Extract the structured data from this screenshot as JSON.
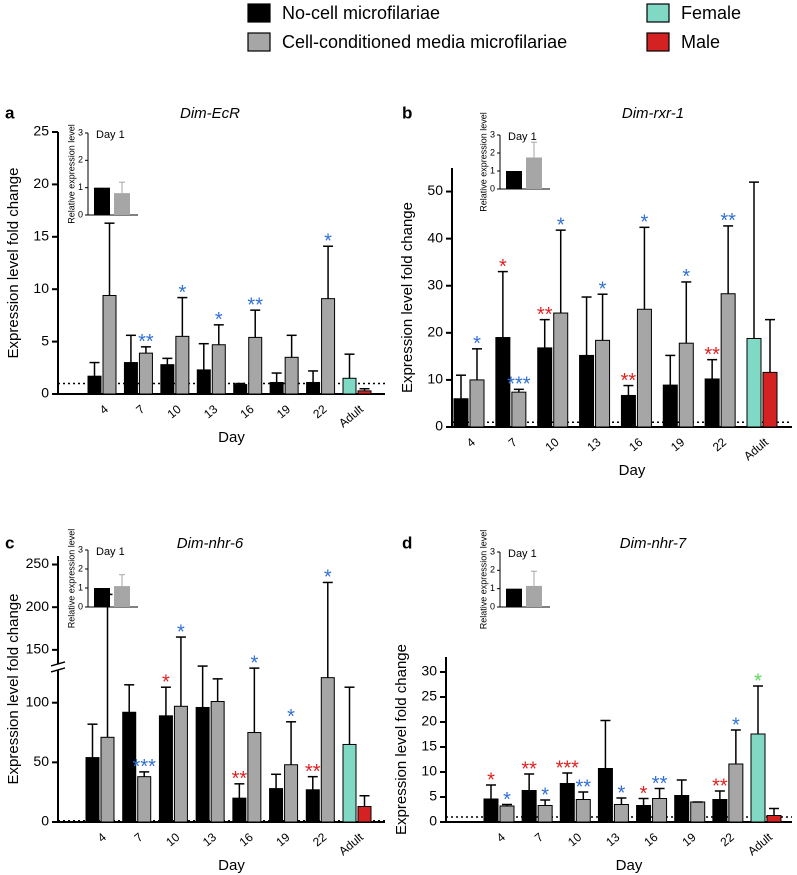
{
  "legend": [
    {
      "name": "No-cell microfilariae",
      "color": "#000000"
    },
    {
      "name": "Cell-conditioned media microfilariae",
      "color": "#a6a6a6"
    },
    {
      "name": "Female",
      "color": "#7fd9c4"
    },
    {
      "name": "Male",
      "color": "#d42222"
    }
  ],
  "chart_data": [
    {
      "type": "bar",
      "panel": "a",
      "title": "Dim-EcR",
      "ylabel": "Expression level fold change",
      "xlabel": "Day",
      "categories": [
        "4",
        "7",
        "10",
        "13",
        "16",
        "19",
        "22",
        "Adult"
      ],
      "ylim": [
        0,
        25
      ],
      "yticks": [
        0,
        5,
        10,
        15,
        20,
        25
      ],
      "reference_line": 1,
      "series": [
        {
          "color": "#000000",
          "values": [
            1.7,
            3.0,
            2.8,
            2.3,
            0.9,
            1.1,
            1.1,
            null
          ],
          "errors": [
            1.3,
            2.6,
            0.6,
            2.5,
            0.1,
            0.9,
            1.1,
            null
          ]
        },
        {
          "color": "#a6a6a6",
          "values": [
            9.4,
            3.9,
            5.5,
            4.7,
            5.4,
            3.5,
            9.1,
            null
          ],
          "errors": [
            6.9,
            0.6,
            3.7,
            1.9,
            2.6,
            2.1,
            5.0,
            null
          ],
          "stars": [
            null,
            "**",
            "*",
            "*",
            "**",
            null,
            "*",
            null
          ],
          "star_colors": [
            null,
            "#2f6fd6",
            "#2f6fd6",
            "#2f6fd6",
            "#2f6fd6",
            null,
            "#2f6fd6",
            null
          ]
        },
        {
          "color": "#7fd9c4",
          "values": [
            null,
            null,
            null,
            null,
            null,
            null,
            null,
            1.5
          ],
          "errors": [
            null,
            null,
            null,
            null,
            null,
            null,
            null,
            2.3
          ]
        },
        {
          "color": "#d42222",
          "values": [
            null,
            null,
            null,
            null,
            null,
            null,
            null,
            0.3
          ],
          "errors": [
            null,
            null,
            null,
            null,
            null,
            null,
            null,
            0.2
          ]
        }
      ],
      "inset": {
        "title": "Day 1",
        "ylabel": "Relative expression level",
        "ylim": [
          0,
          3
        ],
        "yticks": [
          0,
          1,
          2,
          3
        ],
        "values": [
          1,
          0.8
        ],
        "errors": [
          0,
          0.4
        ]
      }
    },
    {
      "type": "bar",
      "panel": "b",
      "title": "Dim-rxr-1",
      "ylabel": "Expression level fold change",
      "xlabel": "Day",
      "categories": [
        "4",
        "7",
        "10",
        "13",
        "16",
        "19",
        "22",
        "Adult"
      ],
      "ylim": [
        0,
        55
      ],
      "yticks": [
        0,
        10,
        20,
        30,
        40,
        50
      ],
      "reference_line": 1,
      "series": [
        {
          "color": "#000000",
          "values": [
            6,
            19,
            16.8,
            15.2,
            6.7,
            8.9,
            10.2,
            null
          ],
          "errors": [
            5,
            14,
            6,
            12.4,
            2.1,
            6.3,
            4.1,
            null
          ],
          "stars": [
            null,
            "*",
            "**",
            null,
            "**",
            null,
            "**",
            null
          ],
          "star_colors": [
            null,
            "#e02020",
            "#e02020",
            null,
            "#e02020",
            null,
            "#e02020",
            null
          ]
        },
        {
          "color": "#a6a6a6",
          "values": [
            10,
            7.4,
            24.2,
            18.4,
            25,
            17.8,
            28.3,
            null
          ],
          "errors": [
            6.6,
            0.6,
            17.6,
            9.8,
            17.4,
            13,
            14.4,
            null
          ],
          "stars": [
            "*",
            "***",
            "*",
            "*",
            "*",
            "*",
            "**",
            null
          ],
          "star_colors": [
            "#2f6fd6",
            "#2f6fd6",
            "#2f6fd6",
            "#2f6fd6",
            "#2f6fd6",
            "#2f6fd6",
            "#2f6fd6",
            null
          ]
        },
        {
          "color": "#7fd9c4",
          "values": [
            null,
            null,
            null,
            null,
            null,
            null,
            null,
            18.8
          ],
          "errors": [
            null,
            null,
            null,
            null,
            null,
            null,
            null,
            33.2
          ]
        },
        {
          "color": "#d42222",
          "values": [
            null,
            null,
            null,
            null,
            null,
            null,
            null,
            11.6
          ],
          "errors": [
            null,
            null,
            null,
            null,
            null,
            null,
            null,
            11.2
          ]
        }
      ],
      "inset": {
        "title": "Day 1",
        "ylabel": "Relative expression level",
        "ylim": [
          0,
          3
        ],
        "yticks": [
          0,
          1,
          2,
          3
        ],
        "values": [
          1,
          1.75
        ],
        "errors": [
          0,
          0.85
        ]
      }
    },
    {
      "type": "bar",
      "panel": "c",
      "title": "Dim-nhr-6",
      "ylabel": "Expression level fold change",
      "xlabel": "Day",
      "categories": [
        "4",
        "7",
        "10",
        "13",
        "16",
        "19",
        "22",
        "Adult"
      ],
      "ylim": [
        0,
        260
      ],
      "yticks": [
        0,
        50,
        100,
        150,
        200,
        250
      ],
      "axis_break": 130,
      "reference_line": 1,
      "series": [
        {
          "color": "#000000",
          "values": [
            54,
            92,
            89,
            96,
            20,
            28,
            27,
            null
          ],
          "errors": [
            28,
            23,
            24,
            35,
            12,
            12,
            11,
            null
          ],
          "stars": [
            null,
            null,
            "*",
            null,
            "**",
            null,
            "**",
            null
          ],
          "star_colors": [
            null,
            null,
            "#e02020",
            null,
            "#e02020",
            null,
            "#e02020",
            null
          ]
        },
        {
          "color": "#a6a6a6",
          "values": [
            71,
            38,
            97,
            101,
            75,
            48,
            121,
            null
          ],
          "errors": [
            144,
            4,
            68,
            19,
            54,
            36,
            108,
            null
          ],
          "stars": [
            null,
            "***",
            "*",
            null,
            "*",
            "*",
            "*",
            null
          ],
          "star_colors": [
            null,
            "#2f6fd6",
            "#2f6fd6",
            null,
            "#2f6fd6",
            "#2f6fd6",
            "#2f6fd6",
            null
          ]
        },
        {
          "color": "#7fd9c4",
          "values": [
            null,
            null,
            null,
            null,
            null,
            null,
            null,
            65
          ],
          "errors": [
            null,
            null,
            null,
            null,
            null,
            null,
            null,
            48
          ]
        },
        {
          "color": "#d42222",
          "values": [
            null,
            null,
            null,
            null,
            null,
            null,
            null,
            13
          ],
          "errors": [
            null,
            null,
            null,
            null,
            null,
            null,
            null,
            9
          ]
        }
      ],
      "inset": {
        "title": "Day 1",
        "ylabel": "Relative expression level",
        "ylim": [
          0,
          3
        ],
        "yticks": [
          0,
          1,
          2,
          3
        ],
        "values": [
          1,
          1.1
        ],
        "errors": [
          0,
          0.6
        ]
      }
    },
    {
      "type": "bar",
      "panel": "d",
      "title": "Dim-nhr-7",
      "ylabel": "Expression level fold change",
      "xlabel": "Day",
      "categories": [
        "4",
        "7",
        "10",
        "13",
        "16",
        "19",
        "22",
        "Adult"
      ],
      "ylim": [
        0,
        33
      ],
      "yticks": [
        0,
        5,
        10,
        15,
        20,
        25,
        30
      ],
      "reference_line": 1,
      "series": [
        {
          "color": "#000000",
          "values": [
            4.6,
            6.3,
            7.7,
            10.7,
            3.3,
            5.3,
            4.5,
            null
          ],
          "errors": [
            2.8,
            3.3,
            2.1,
            9.6,
            1.4,
            3.1,
            1.7,
            null
          ],
          "stars": [
            "*",
            "**",
            "***",
            null,
            "*",
            null,
            "**",
            null
          ],
          "star_colors": [
            "#e02020",
            "#e02020",
            "#e02020",
            null,
            "#e02020",
            null,
            "#e02020",
            null
          ]
        },
        {
          "color": "#a6a6a6",
          "values": [
            3.2,
            3.3,
            4.5,
            3.5,
            4.7,
            4,
            11.6,
            null
          ],
          "errors": [
            0.3,
            1.1,
            1.5,
            1.3,
            2.0,
            0,
            6.8,
            null
          ],
          "stars": [
            "*",
            "*",
            "**",
            "*",
            "**",
            null,
            "*",
            null
          ],
          "star_colors": [
            "#2f6fd6",
            "#2f6fd6",
            "#2f6fd6",
            "#2f6fd6",
            "#2f6fd6",
            null,
            "#2f6fd6",
            null
          ]
        },
        {
          "color": "#7fd9c4",
          "values": [
            null,
            null,
            null,
            null,
            null,
            null,
            null,
            17.6
          ],
          "errors": [
            null,
            null,
            null,
            null,
            null,
            null,
            null,
            9.6
          ],
          "stars": [
            null,
            null,
            null,
            null,
            null,
            null,
            null,
            "*"
          ],
          "star_colors": [
            null,
            null,
            null,
            null,
            null,
            null,
            null,
            "#5cd65c"
          ]
        },
        {
          "color": "#d42222",
          "values": [
            null,
            null,
            null,
            null,
            null,
            null,
            null,
            1.3
          ],
          "errors": [
            null,
            null,
            null,
            null,
            null,
            null,
            null,
            1.4
          ]
        }
      ],
      "inset": {
        "title": "Day 1",
        "ylabel": "Relative expression level",
        "ylim": [
          0,
          3
        ],
        "yticks": [
          0,
          1,
          2,
          3
        ],
        "values": [
          1,
          1.15
        ],
        "errors": [
          0,
          0.8
        ]
      }
    }
  ]
}
